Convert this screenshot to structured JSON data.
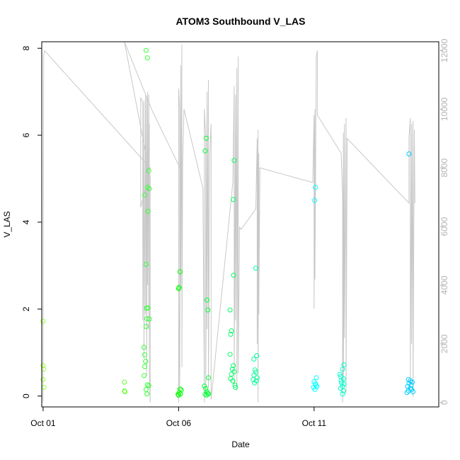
{
  "chart_data": {
    "type": "scatter",
    "title": "ATOM3 Southbound V_LAS",
    "xlabel": "Date",
    "ylabel": "V_LAS",
    "x_unit": "days (October)",
    "xlim": [
      0.95,
      15.6
    ],
    "ylim": [
      -0.25,
      8.15
    ],
    "y2lim": [
      -150,
      12300
    ],
    "x_ticks": [
      1,
      6,
      11
    ],
    "x_tick_labels": [
      "Oct 01",
      "Oct 06",
      "Oct 11"
    ],
    "y_ticks": [
      0,
      2,
      4,
      6,
      8
    ],
    "y_tick_labels": [
      "0",
      "2",
      "4",
      "6",
      "8"
    ],
    "y2_ticks": [
      0,
      2000,
      4000,
      6000,
      8000,
      10000,
      12000
    ],
    "y2_tick_labels": [
      "0",
      "2000",
      "4000",
      "6000",
      "8000",
      "10000",
      "12000"
    ],
    "grid": false,
    "legend": "none",
    "point_style": "open circle",
    "background_line_color": "#c8c8c8",
    "series": [
      {
        "color": "#99ff33",
        "points": [
          [
            1.0,
            1.72
          ],
          [
            1.0,
            0.7
          ],
          [
            1.02,
            0.62
          ],
          [
            1.0,
            0.38
          ],
          [
            1.03,
            0.2
          ]
        ]
      },
      {
        "color": "#66ff33",
        "points": [
          [
            4.0,
            0.32
          ],
          [
            4.0,
            0.12
          ],
          [
            4.02,
            0.1
          ]
        ]
      },
      {
        "color": "#33ff33",
        "points": [
          [
            4.8,
            7.95
          ],
          [
            4.85,
            7.78
          ],
          [
            4.9,
            5.18
          ],
          [
            4.75,
            4.62
          ],
          [
            4.85,
            4.8
          ],
          [
            4.92,
            4.77
          ],
          [
            4.87,
            4.25
          ],
          [
            4.8,
            3.03
          ],
          [
            4.82,
            2.02
          ],
          [
            4.87,
            2.03
          ],
          [
            4.83,
            1.78
          ],
          [
            4.92,
            1.77
          ],
          [
            4.8,
            1.6
          ],
          [
            4.72,
            1.12
          ],
          [
            4.75,
            0.95
          ],
          [
            4.78,
            0.8
          ],
          [
            4.75,
            0.68
          ],
          [
            4.73,
            0.47
          ],
          [
            4.85,
            0.26
          ],
          [
            4.9,
            0.24
          ],
          [
            4.8,
            0.15
          ],
          [
            4.83,
            0.05
          ]
        ]
      },
      {
        "color": "#00ff00",
        "points": [
          [
            6.05,
            2.86
          ],
          [
            6.02,
            2.5
          ],
          [
            6.0,
            2.47
          ],
          [
            6.05,
            0.16
          ],
          [
            6.1,
            0.14
          ],
          [
            6.02,
            0.08
          ],
          [
            5.98,
            0.04
          ],
          [
            6.0,
            0.02
          ],
          [
            6.07,
            0.05
          ]
        ]
      },
      {
        "color": "#00ff33",
        "points": [
          [
            7.02,
            5.93
          ],
          [
            6.98,
            5.64
          ],
          [
            7.05,
            2.21
          ],
          [
            7.08,
            1.98
          ],
          [
            7.1,
            0.42
          ],
          [
            6.95,
            0.23
          ],
          [
            7.0,
            0.17
          ],
          [
            7.05,
            0.1
          ],
          [
            7.08,
            0.06
          ],
          [
            6.98,
            0.04
          ],
          [
            7.1,
            0.05
          ],
          [
            7.03,
            0.02
          ]
        ]
      },
      {
        "color": "#00ff66",
        "points": [
          [
            8.05,
            5.42
          ],
          [
            8.02,
            4.52
          ],
          [
            8.03,
            2.78
          ],
          [
            7.9,
            1.98
          ],
          [
            7.95,
            1.5
          ],
          [
            7.92,
            1.42
          ],
          [
            7.9,
            0.96
          ],
          [
            8.02,
            0.7
          ],
          [
            7.98,
            0.62
          ],
          [
            8.05,
            0.56
          ],
          [
            7.95,
            0.5
          ],
          [
            7.92,
            0.4
          ],
          [
            8.0,
            0.35
          ],
          [
            8.08,
            0.25
          ],
          [
            8.1,
            0.2
          ]
        ]
      },
      {
        "color": "#00ff99",
        "points": [
          [
            8.85,
            2.94
          ],
          [
            8.78,
            0.85
          ],
          [
            8.88,
            0.93
          ],
          [
            8.82,
            0.6
          ],
          [
            8.85,
            0.55
          ],
          [
            8.78,
            0.48
          ],
          [
            8.9,
            0.42
          ],
          [
            8.75,
            0.38
          ],
          [
            8.8,
            0.3
          ],
          [
            8.87,
            0.35
          ]
        ]
      },
      {
        "color": "#00ffff",
        "points": [
          [
            11.05,
            4.8
          ],
          [
            11.02,
            4.5
          ],
          [
            11.08,
            0.42
          ],
          [
            11.0,
            0.33
          ],
          [
            11.05,
            0.28
          ],
          [
            11.1,
            0.22
          ],
          [
            10.98,
            0.2
          ],
          [
            11.03,
            0.15
          ],
          [
            11.07,
            0.25
          ]
        ]
      },
      {
        "color": "#00ffcc",
        "points": [
          [
            11.95,
            0.5
          ],
          [
            12.1,
            0.72
          ],
          [
            12.05,
            0.62
          ],
          [
            11.98,
            0.45
          ],
          [
            12.08,
            0.4
          ],
          [
            12.0,
            0.35
          ],
          [
            12.02,
            0.3
          ],
          [
            12.1,
            0.28
          ],
          [
            12.05,
            0.22
          ],
          [
            11.98,
            0.18
          ],
          [
            12.08,
            0.12
          ],
          [
            12.05,
            0.05
          ]
        ]
      },
      {
        "color": "#00ccff",
        "points": [
          [
            14.5,
            5.57
          ],
          [
            14.48,
            0.38
          ],
          [
            14.55,
            0.35
          ],
          [
            14.62,
            0.32
          ],
          [
            14.5,
            0.3
          ],
          [
            14.58,
            0.25
          ],
          [
            14.45,
            0.22
          ],
          [
            14.55,
            0.18
          ],
          [
            14.6,
            0.15
          ],
          [
            14.48,
            0.12
          ],
          [
            14.65,
            0.1
          ],
          [
            14.43,
            0.08
          ]
        ]
      }
    ],
    "background_line": [
      [
        1.0,
        0
      ],
      [
        1.0,
        1000
      ],
      [
        1.02,
        11800
      ],
      [
        1.05,
        12000
      ],
      [
        4.95,
        8000
      ],
      [
        4.6,
        6650
      ],
      [
        4.6,
        10400
      ],
      [
        4.68,
        10200
      ],
      [
        4.68,
        2800
      ],
      [
        4.72,
        10300
      ],
      [
        4.72,
        1500
      ],
      [
        4.78,
        10500
      ],
      [
        4.78,
        3000
      ],
      [
        4.82,
        10400
      ],
      [
        4.82,
        900
      ],
      [
        4.86,
        10600
      ],
      [
        4.86,
        4000
      ],
      [
        4.9,
        10500
      ],
      [
        4.9,
        2500
      ],
      [
        4.92,
        9500
      ],
      [
        4.92,
        1000
      ],
      [
        4.95,
        0
      ],
      [
        4.95,
        7700
      ],
      [
        4.0,
        12300
      ],
      [
        5.0,
        10000
      ],
      [
        6.05,
        8000
      ],
      [
        6.08,
        7500
      ],
      [
        6.0,
        0
      ],
      [
        6.0,
        10700
      ],
      [
        6.04,
        10000
      ],
      [
        6.04,
        500
      ],
      [
        6.08,
        11500
      ],
      [
        6.08,
        4000
      ],
      [
        6.12,
        12200
      ],
      [
        6.12,
        1200
      ],
      [
        6.15,
        8200
      ],
      [
        6.2,
        10000
      ],
      [
        6.9,
        7300
      ],
      [
        6.95,
        0
      ],
      [
        6.95,
        10000
      ],
      [
        7.0,
        9000
      ],
      [
        7.0,
        300
      ],
      [
        7.05,
        10600
      ],
      [
        7.05,
        2500
      ],
      [
        7.1,
        11000
      ],
      [
        7.1,
        500
      ],
      [
        7.15,
        8500
      ],
      [
        7.2,
        9500
      ],
      [
        7.2,
        100
      ],
      [
        8.0,
        7500
      ],
      [
        8.05,
        10800
      ],
      [
        8.05,
        600
      ],
      [
        8.1,
        10500
      ],
      [
        8.1,
        2800
      ],
      [
        8.15,
        11400
      ],
      [
        8.15,
        400
      ],
      [
        8.2,
        11800
      ],
      [
        8.2,
        1000
      ],
      [
        8.25,
        6000
      ],
      [
        8.3,
        5900
      ],
      [
        8.85,
        6600
      ],
      [
        8.9,
        9000
      ],
      [
        8.9,
        2000
      ],
      [
        8.93,
        9300
      ],
      [
        8.93,
        0
      ],
      [
        8.96,
        8500
      ],
      [
        8.96,
        3000
      ],
      [
        9.0,
        8000
      ],
      [
        10.95,
        7500
      ],
      [
        11.0,
        9800
      ],
      [
        11.0,
        3200
      ],
      [
        11.03,
        10000
      ],
      [
        11.03,
        4200
      ],
      [
        11.08,
        11800
      ],
      [
        11.12,
        12000
      ],
      [
        11.12,
        9800
      ],
      [
        12.0,
        8500
      ],
      [
        12.05,
        7000
      ],
      [
        12.05,
        0
      ],
      [
        12.08,
        9200
      ],
      [
        12.08,
        800
      ],
      [
        12.12,
        9500
      ],
      [
        12.12,
        2200
      ],
      [
        12.18,
        9700
      ],
      [
        12.18,
        300
      ],
      [
        12.22,
        9000
      ],
      [
        14.5,
        6800
      ],
      [
        14.5,
        9000
      ],
      [
        14.55,
        9700
      ],
      [
        14.55,
        800
      ],
      [
        14.6,
        9500
      ],
      [
        14.6,
        2000
      ],
      [
        14.65,
        9600
      ],
      [
        14.65,
        200
      ],
      [
        14.7,
        9300
      ],
      [
        14.72,
        6800
      ]
    ]
  }
}
